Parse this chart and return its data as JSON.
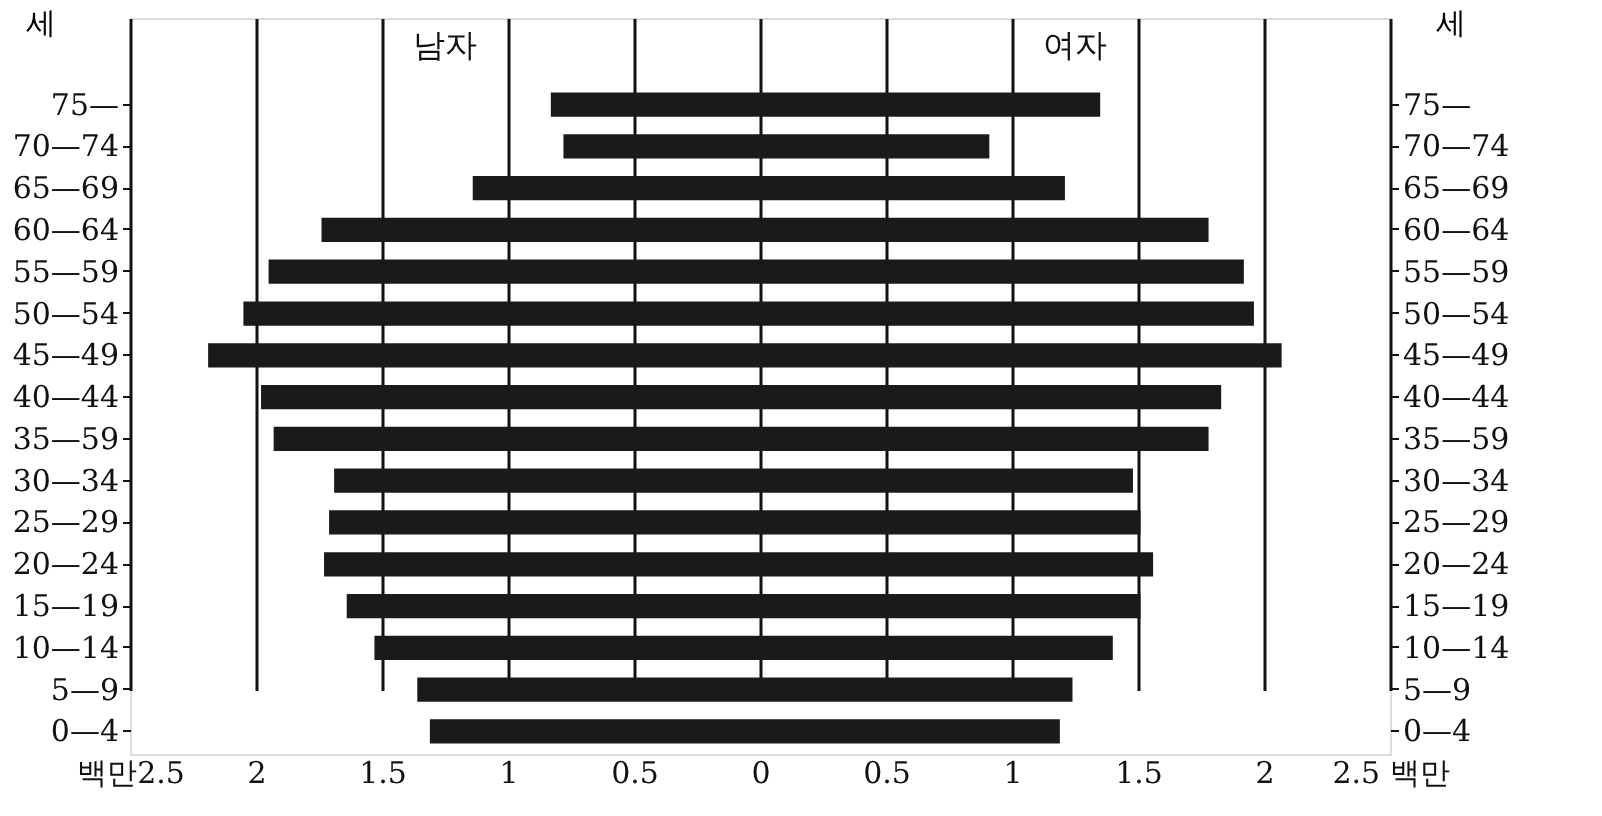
{
  "chart_data": {
    "type": "bar",
    "orientation": "horizontal",
    "ylabel": "세",
    "y2label": "세",
    "categories": [
      "75—",
      "70—74",
      "65—69",
      "60—64",
      "55—59",
      "50—54",
      "45—49",
      "40—44",
      "35—59",
      "30—34",
      "25—29",
      "20—24",
      "15—19",
      "10—14",
      "5—9",
      "0—4"
    ],
    "series": [
      {
        "name": "남자",
        "color": "#1a1a1a",
        "values": [
          -0.83,
          -0.78,
          -1.14,
          -1.74,
          -1.95,
          -2.05,
          -2.19,
          -1.98,
          -1.93,
          -1.69,
          -1.71,
          -1.73,
          -1.64,
          -1.53,
          -1.36,
          -1.31
        ]
      },
      {
        "name": "여자",
        "color": "#1a1a1a",
        "values": [
          1.35,
          0.91,
          1.21,
          1.78,
          1.92,
          1.96,
          2.07,
          1.83,
          1.78,
          1.48,
          1.51,
          1.56,
          1.51,
          1.4,
          1.24,
          1.19
        ]
      }
    ],
    "xlim": [
      -2.5,
      2.5
    ],
    "xticks": [
      {
        "value": -2.5,
        "label": "백만2.5"
      },
      {
        "value": -2,
        "label": "2"
      },
      {
        "value": -1.5,
        "label": "1.5"
      },
      {
        "value": -1,
        "label": "1"
      },
      {
        "value": -0.5,
        "label": "0.5"
      },
      0,
      0.5,
      1,
      1.5,
      2,
      {
        "value": 2.5,
        "label": "2.5 백만"
      }
    ],
    "grid": "x",
    "legend": false,
    "stacked": true
  }
}
